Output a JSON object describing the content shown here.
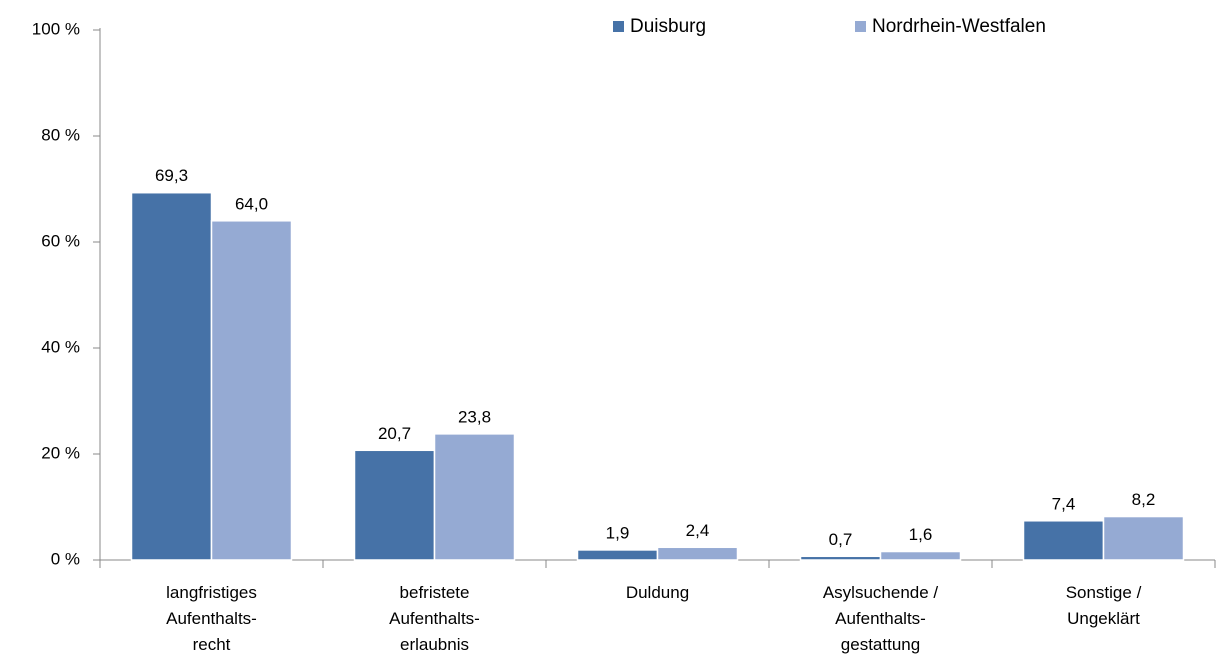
{
  "chart_data": {
    "type": "bar",
    "categories": [
      "langfristiges\nAufenthalts-\nrecht",
      "befristete\nAufenthalts-\nerlaubnis",
      "Duldung",
      "Asylsuchende /\nAufenthalts-\ngestattung",
      "Sonstige /\nUngeklärt"
    ],
    "series": [
      {
        "name": "Duisburg",
        "color": "#4672a7",
        "values": [
          69.3,
          20.7,
          1.9,
          0.7,
          7.4
        ],
        "value_labels": [
          "69,3",
          "20,7",
          "1,9",
          "0,7",
          "7,4"
        ]
      },
      {
        "name": "Nordrhein-Westfalen",
        "color": "#95aad3",
        "values": [
          64.0,
          23.8,
          2.4,
          1.6,
          8.2
        ],
        "value_labels": [
          "64,0",
          "23,8",
          "2,4",
          "1,6",
          "8,2"
        ]
      }
    ],
    "ylim": [
      0,
      100
    ],
    "yticks": [
      {
        "value": 0,
        "label": "0 %"
      },
      {
        "value": 20,
        "label": "20 %"
      },
      {
        "value": 40,
        "label": "40 %"
      },
      {
        "value": 60,
        "label": "60 %"
      },
      {
        "value": 80,
        "label": "80 %"
      },
      {
        "value": 100,
        "label": "100 %"
      }
    ],
    "legend": "top"
  }
}
